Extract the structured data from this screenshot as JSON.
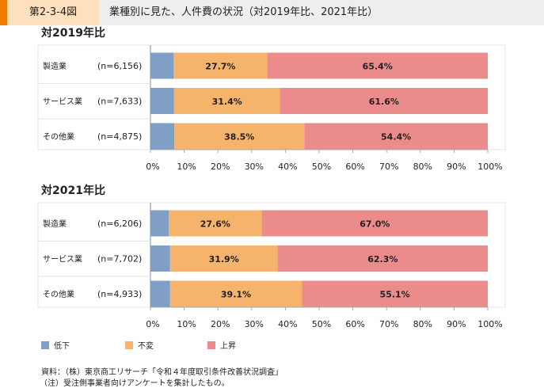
{
  "header": {
    "figure_number": "第2-3-4図",
    "title": "業種別に見た、人件費の状況（対2019年比、2021年比）"
  },
  "colors": {
    "低下": "#7f9fc4",
    "不変": "#f5b36c",
    "上昇": "#ec8b8c"
  },
  "chart_data": [
    {
      "type": "bar",
      "orientation": "horizontal",
      "stacked": true,
      "title": "対2019年比",
      "categories": [
        "製造業",
        "サービス業",
        "その他業"
      ],
      "n_labels": [
        "(n=6,156)",
        "(n=7,633)",
        "(n=4,875)"
      ],
      "series": [
        {
          "name": "低下",
          "values": [
            6.9,
            7.0,
            7.1
          ]
        },
        {
          "name": "不変",
          "values": [
            27.7,
            31.4,
            38.5
          ]
        },
        {
          "name": "上昇",
          "values": [
            65.4,
            61.6,
            54.4
          ]
        }
      ],
      "xlim": [
        0,
        100
      ],
      "xticks": [
        "0%",
        "10%",
        "20%",
        "30%",
        "40%",
        "50%",
        "60%",
        "70%",
        "80%",
        "90%",
        "100%"
      ]
    },
    {
      "type": "bar",
      "orientation": "horizontal",
      "stacked": true,
      "title": "対2021年比",
      "categories": [
        "製造業",
        "サービス業",
        "その他業"
      ],
      "n_labels": [
        "(n=6,206)",
        "(n=7,702)",
        "(n=4,933)"
      ],
      "series": [
        {
          "name": "低下",
          "values": [
            5.4,
            5.8,
            5.8
          ]
        },
        {
          "name": "不変",
          "values": [
            27.6,
            31.9,
            39.1
          ]
        },
        {
          "name": "上昇",
          "values": [
            67.0,
            62.3,
            55.1
          ]
        }
      ],
      "xlim": [
        0,
        100
      ],
      "xticks": [
        "0%",
        "10%",
        "20%",
        "30%",
        "40%",
        "50%",
        "60%",
        "70%",
        "80%",
        "90%",
        "100%"
      ]
    }
  ],
  "legend": [
    "低下",
    "不変",
    "上昇"
  ],
  "source": {
    "line1": "資料：（株）東京商工リサーチ「令和４年度取引条件改善状況調査」",
    "line2": "（注）受注側事業者向けアンケートを集計したもの。"
  }
}
